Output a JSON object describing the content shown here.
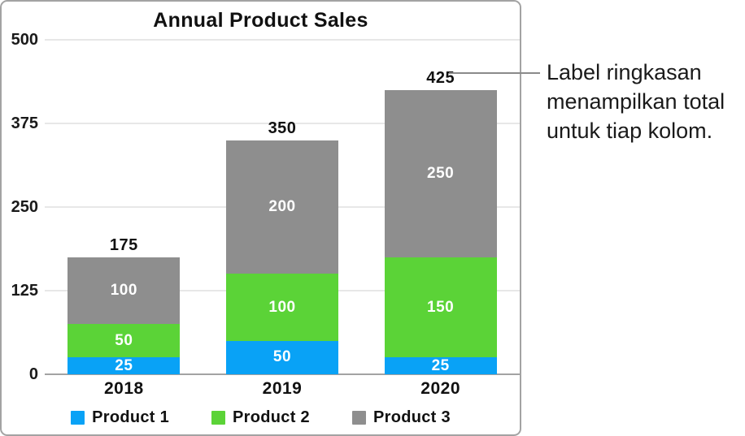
{
  "callout": {
    "text": "Label ringkasan menampilkan total untuk tiap kolom."
  },
  "chart_data": {
    "type": "bar",
    "stacked": true,
    "title": "Annual Product Sales",
    "categories": [
      "2018",
      "2019",
      "2020"
    ],
    "series": [
      {
        "name": "Product 1",
        "color": "#09a2f6",
        "values": [
          25,
          50,
          25
        ]
      },
      {
        "name": "Product 2",
        "color": "#5bd337",
        "values": [
          50,
          100,
          150
        ]
      },
      {
        "name": "Product 3",
        "color": "#8e8e8e",
        "values": [
          100,
          200,
          250
        ]
      }
    ],
    "totals": [
      175,
      350,
      425
    ],
    "yticks": [
      0,
      125,
      250,
      375,
      500
    ],
    "ylim": [
      0,
      500
    ],
    "xlabel": "",
    "ylabel": "",
    "grid": true,
    "legend_position": "bottom",
    "value_labels": "inside-segments-and-total-on-top"
  }
}
